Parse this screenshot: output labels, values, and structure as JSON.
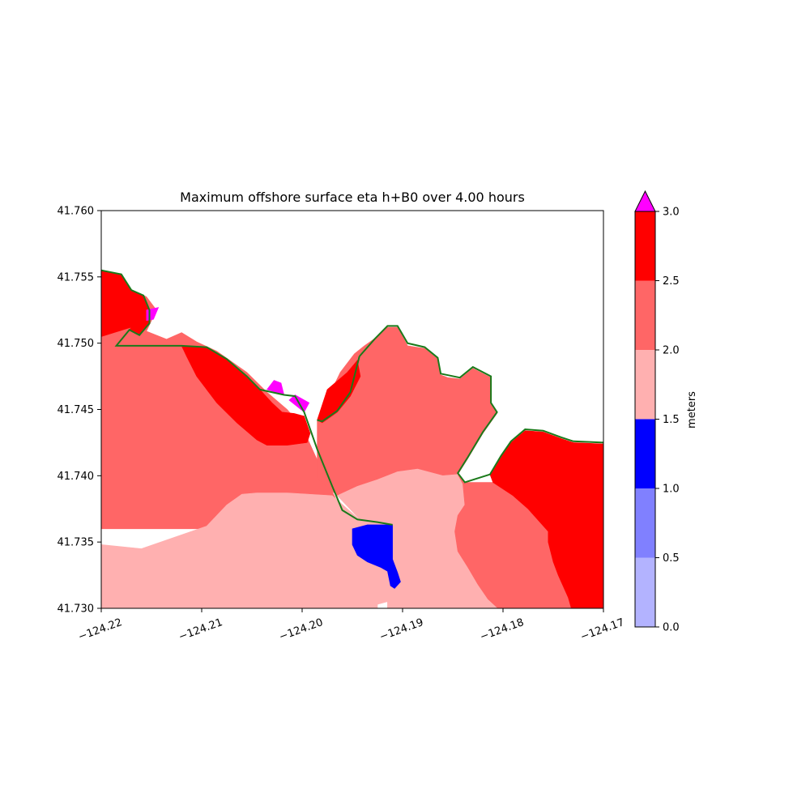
{
  "chart_data": {
    "type": "heatmap",
    "title": "Maximum offshore surface eta h+B0 over 4.00 hours",
    "xlabel": "",
    "ylabel": "",
    "xlim": [
      -124.22,
      -124.17
    ],
    "ylim": [
      41.73,
      41.76
    ],
    "x_ticks": [
      "−124.22",
      "−124.21",
      "−124.20",
      "−124.19",
      "−124.18",
      "−124.17"
    ],
    "y_ticks": [
      "41.730",
      "41.735",
      "41.740",
      "41.745",
      "41.750",
      "41.755",
      "41.760"
    ],
    "x_tick_values": [
      -124.22,
      -124.21,
      -124.2,
      -124.19,
      -124.18,
      -124.17
    ],
    "y_tick_values": [
      41.73,
      41.735,
      41.74,
      41.745,
      41.75,
      41.755,
      41.76
    ],
    "grid": false,
    "colorbar": {
      "label": "meters",
      "ticks": [
        "0.0",
        "0.5",
        "1.0",
        "1.5",
        "2.0",
        "2.5",
        "3.0"
      ],
      "levels": [
        {
          "from": 0.0,
          "to": 0.5,
          "color": "#b3b3ff"
        },
        {
          "from": 0.5,
          "to": 1.0,
          "color": "#8080ff"
        },
        {
          "from": 1.0,
          "to": 1.5,
          "color": "#0000ff"
        },
        {
          "from": 1.5,
          "to": 2.0,
          "color": "#ffb0b0"
        },
        {
          "from": 2.0,
          "to": 2.5,
          "color": "#ff6666"
        },
        {
          "from": 2.5,
          "to": 3.0,
          "color": "#ff0000"
        }
      ],
      "extend_max_color": "#ff00ff"
    },
    "regions": [
      {
        "level": "2.0-2.5",
        "color": "#ff6666",
        "points": [
          [
            -124.22,
            41.7555
          ],
          [
            -124.218,
            41.7544
          ],
          [
            -124.2155,
            41.7535
          ],
          [
            -124.2145,
            41.7525
          ],
          [
            -124.2155,
            41.7509
          ],
          [
            -124.2135,
            41.7503
          ],
          [
            -124.212,
            41.7508
          ],
          [
            -124.2105,
            41.7501
          ],
          [
            -124.2085,
            41.7494
          ],
          [
            -124.2055,
            41.7478
          ],
          [
            -124.2035,
            41.7463
          ],
          [
            -124.2015,
            41.745
          ],
          [
            -124.2,
            41.7437
          ],
          [
            -124.1985,
            41.7412
          ],
          [
            -124.197,
            41.7388
          ],
          [
            -124.196,
            41.7373
          ],
          [
            -124.1945,
            41.7366
          ],
          [
            -124.1925,
            41.7364
          ],
          [
            -124.191,
            41.7362
          ],
          [
            -124.191,
            41.736
          ],
          [
            -124.22,
            41.736
          ]
        ]
      },
      {
        "level": "1.5-2.0",
        "color": "#ffb0b0",
        "points": [
          [
            -124.22,
            41.7348
          ],
          [
            -124.216,
            41.7345
          ],
          [
            -124.2095,
            41.7362
          ],
          [
            -124.2075,
            41.7378
          ],
          [
            -124.206,
            41.7386
          ],
          [
            -124.2045,
            41.7387
          ],
          [
            -124.2015,
            41.7387
          ],
          [
            -124.197,
            41.7385
          ],
          [
            -124.194,
            41.7365
          ],
          [
            -124.191,
            41.7362
          ],
          [
            -124.191,
            41.7335
          ],
          [
            -124.1915,
            41.733
          ],
          [
            -124.1915,
            41.7305
          ],
          [
            -124.1925,
            41.7303
          ],
          [
            -124.1925,
            41.73
          ],
          [
            -124.22,
            41.73
          ]
        ]
      },
      {
        "level": "2.0-2.5",
        "color": "#ff6666",
        "points": [
          [
            -124.1965,
            41.7385
          ],
          [
            -124.1985,
            41.7398
          ],
          [
            -124.1985,
            41.7442
          ],
          [
            -124.1962,
            41.7478
          ],
          [
            -124.1948,
            41.7492
          ],
          [
            -124.1938,
            41.7498
          ],
          [
            -124.1925,
            41.7505
          ],
          [
            -124.1915,
            41.7512
          ],
          [
            -124.1905,
            41.7512
          ],
          [
            -124.1895,
            41.7498
          ],
          [
            -124.1878,
            41.7496
          ],
          [
            -124.1865,
            41.7488
          ],
          [
            -124.1862,
            41.7476
          ],
          [
            -124.1855,
            41.7474
          ],
          [
            -124.1843,
            41.7473
          ],
          [
            -124.183,
            41.7481
          ],
          [
            -124.1812,
            41.7474
          ],
          [
            -124.1812,
            41.7454
          ],
          [
            -124.1806,
            41.7447
          ],
          [
            -124.182,
            41.7432
          ],
          [
            -124.1835,
            41.7413
          ],
          [
            -124.1845,
            41.7401
          ],
          [
            -124.186,
            41.74
          ],
          [
            -124.1885,
            41.7405
          ],
          [
            -124.1905,
            41.7403
          ],
          [
            -124.1925,
            41.7397
          ],
          [
            -124.1945,
            41.7392
          ]
        ]
      },
      {
        "level": "1.5-2.0",
        "color": "#ffb0b0",
        "points": [
          [
            -124.1965,
            41.7385
          ],
          [
            -124.1945,
            41.7392
          ],
          [
            -124.1925,
            41.7397
          ],
          [
            -124.1905,
            41.7403
          ],
          [
            -124.1885,
            41.7405
          ],
          [
            -124.186,
            41.74
          ],
          [
            -124.1845,
            41.7401
          ],
          [
            -124.184,
            41.7394
          ],
          [
            -124.1838,
            41.7378
          ],
          [
            -124.1845,
            41.737
          ],
          [
            -124.1848,
            41.7358
          ],
          [
            -124.1845,
            41.7343
          ],
          [
            -124.1835,
            41.7331
          ],
          [
            -124.1825,
            41.7318
          ],
          [
            -124.1815,
            41.7307
          ],
          [
            -124.1805,
            41.73
          ],
          [
            -124.1915,
            41.73
          ],
          [
            -124.1915,
            41.733
          ],
          [
            -124.191,
            41.7335
          ],
          [
            -124.191,
            41.7362
          ],
          [
            -124.194,
            41.7365
          ]
        ]
      },
      {
        "level": "2.0-2.5",
        "color": "#ff6666",
        "points": [
          [
            -124.1845,
            41.7401
          ],
          [
            -124.1838,
            41.7395
          ],
          [
            -124.181,
            41.7395
          ],
          [
            -124.179,
            41.7385
          ],
          [
            -124.1775,
            41.7375
          ],
          [
            -124.1755,
            41.7358
          ],
          [
            -124.1755,
            41.735
          ],
          [
            -124.175,
            41.7335
          ],
          [
            -124.1745,
            41.7325
          ],
          [
            -124.1735,
            41.7308
          ],
          [
            -124.173,
            41.73
          ],
          [
            -124.1805,
            41.73
          ],
          [
            -124.1815,
            41.7307
          ],
          [
            -124.1825,
            41.7318
          ],
          [
            -124.1835,
            41.7331
          ],
          [
            -124.1845,
            41.7343
          ],
          [
            -124.1848,
            41.7358
          ],
          [
            -124.1845,
            41.737
          ],
          [
            -124.1838,
            41.7378
          ],
          [
            -124.184,
            41.7394
          ]
        ]
      },
      {
        "level": "2.5-3.0",
        "color": "#ff0000",
        "points": [
          [
            -124.22,
            41.7555
          ],
          [
            -124.218,
            41.7552
          ],
          [
            -124.217,
            41.754
          ],
          [
            -124.2158,
            41.7536
          ],
          [
            -124.2152,
            41.7525
          ],
          [
            -124.2152,
            41.7515
          ],
          [
            -124.2162,
            41.7506
          ],
          [
            -124.2172,
            41.751
          ],
          [
            -124.217,
            41.7512
          ],
          [
            -124.22,
            41.7505
          ]
        ]
      },
      {
        "level": "2.5-3.0",
        "color": "#ff0000",
        "points": [
          [
            -124.212,
            41.7498
          ],
          [
            -124.2095,
            41.7497
          ],
          [
            -124.2075,
            41.7488
          ],
          [
            -124.2055,
            41.7475
          ],
          [
            -124.2042,
            41.7465
          ],
          [
            -124.203,
            41.7455
          ],
          [
            -124.202,
            41.7448
          ],
          [
            -124.2008,
            41.7447
          ],
          [
            -124.1998,
            41.7445
          ],
          [
            -124.1992,
            41.7432
          ],
          [
            -124.1995,
            41.7425
          ],
          [
            -124.2015,
            41.7423
          ],
          [
            -124.2035,
            41.7423
          ],
          [
            -124.2045,
            41.7427
          ],
          [
            -124.2065,
            41.744
          ],
          [
            -124.2085,
            41.7455
          ],
          [
            -124.2105,
            41.7475
          ],
          [
            -124.2115,
            41.749
          ]
        ]
      },
      {
        "level": "2.5-3.0",
        "color": "#ff0000",
        "points": [
          [
            -124.1985,
            41.7442
          ],
          [
            -124.1975,
            41.7465
          ],
          [
            -124.1955,
            41.7478
          ],
          [
            -124.1945,
            41.7487
          ],
          [
            -124.1942,
            41.7475
          ],
          [
            -124.1952,
            41.746
          ],
          [
            -124.1965,
            41.7448
          ],
          [
            -124.198,
            41.744
          ]
        ]
      },
      {
        "level": "2.5-3.0",
        "color": "#ff0000",
        "points": [
          [
            -124.1813,
            41.7401
          ],
          [
            -124.1802,
            41.7415
          ],
          [
            -124.1792,
            41.7425
          ],
          [
            -124.1778,
            41.7434
          ],
          [
            -124.176,
            41.7433
          ],
          [
            -124.1742,
            41.7428
          ],
          [
            -124.173,
            41.7425
          ],
          [
            -124.17,
            41.7424
          ],
          [
            -124.17,
            41.73
          ],
          [
            -124.1732,
            41.73
          ],
          [
            -124.1735,
            41.7308
          ],
          [
            -124.1745,
            41.7325
          ],
          [
            -124.175,
            41.7335
          ],
          [
            -124.1755,
            41.735
          ],
          [
            -124.1755,
            41.7358
          ],
          [
            -124.1775,
            41.7375
          ],
          [
            -124.179,
            41.7385
          ],
          [
            -124.181,
            41.7395
          ]
        ]
      },
      {
        "level": "1.0-1.5",
        "color": "#0000ff",
        "points": [
          [
            -124.1935,
            41.7363
          ],
          [
            -124.191,
            41.7363
          ],
          [
            -124.191,
            41.7337
          ],
          [
            -124.1905,
            41.7327
          ],
          [
            -124.1902,
            41.732
          ],
          [
            -124.1908,
            41.7315
          ],
          [
            -124.1912,
            41.7317
          ],
          [
            -124.1915,
            41.7328
          ],
          [
            -124.1922,
            41.7331
          ],
          [
            -124.1935,
            41.7335
          ],
          [
            -124.1945,
            41.734
          ],
          [
            -124.195,
            41.7348
          ],
          [
            -124.195,
            41.736
          ]
        ]
      },
      {
        "level": "2.5-3.0+",
        "color": "#ff00ff",
        "points": [
          [
            -124.2013,
            41.7457
          ],
          [
            -124.1998,
            41.7448
          ],
          [
            -124.1993,
            41.7455
          ],
          [
            -124.2007,
            41.7461
          ]
        ]
      },
      {
        "level": "2.5-3.0+",
        "color": "#ff00ff",
        "points": [
          [
            -124.2018,
            41.7461
          ],
          [
            -124.2035,
            41.7465
          ],
          [
            -124.2028,
            41.7472
          ],
          [
            -124.2021,
            41.747
          ]
        ]
      },
      {
        "level": "2.5-3.0+",
        "color": "#ff00ff",
        "points": [
          [
            -124.2143,
            41.7527
          ],
          [
            -124.2155,
            41.7525
          ],
          [
            -124.2155,
            41.7517
          ],
          [
            -124.2148,
            41.7518
          ]
        ]
      }
    ]
  }
}
